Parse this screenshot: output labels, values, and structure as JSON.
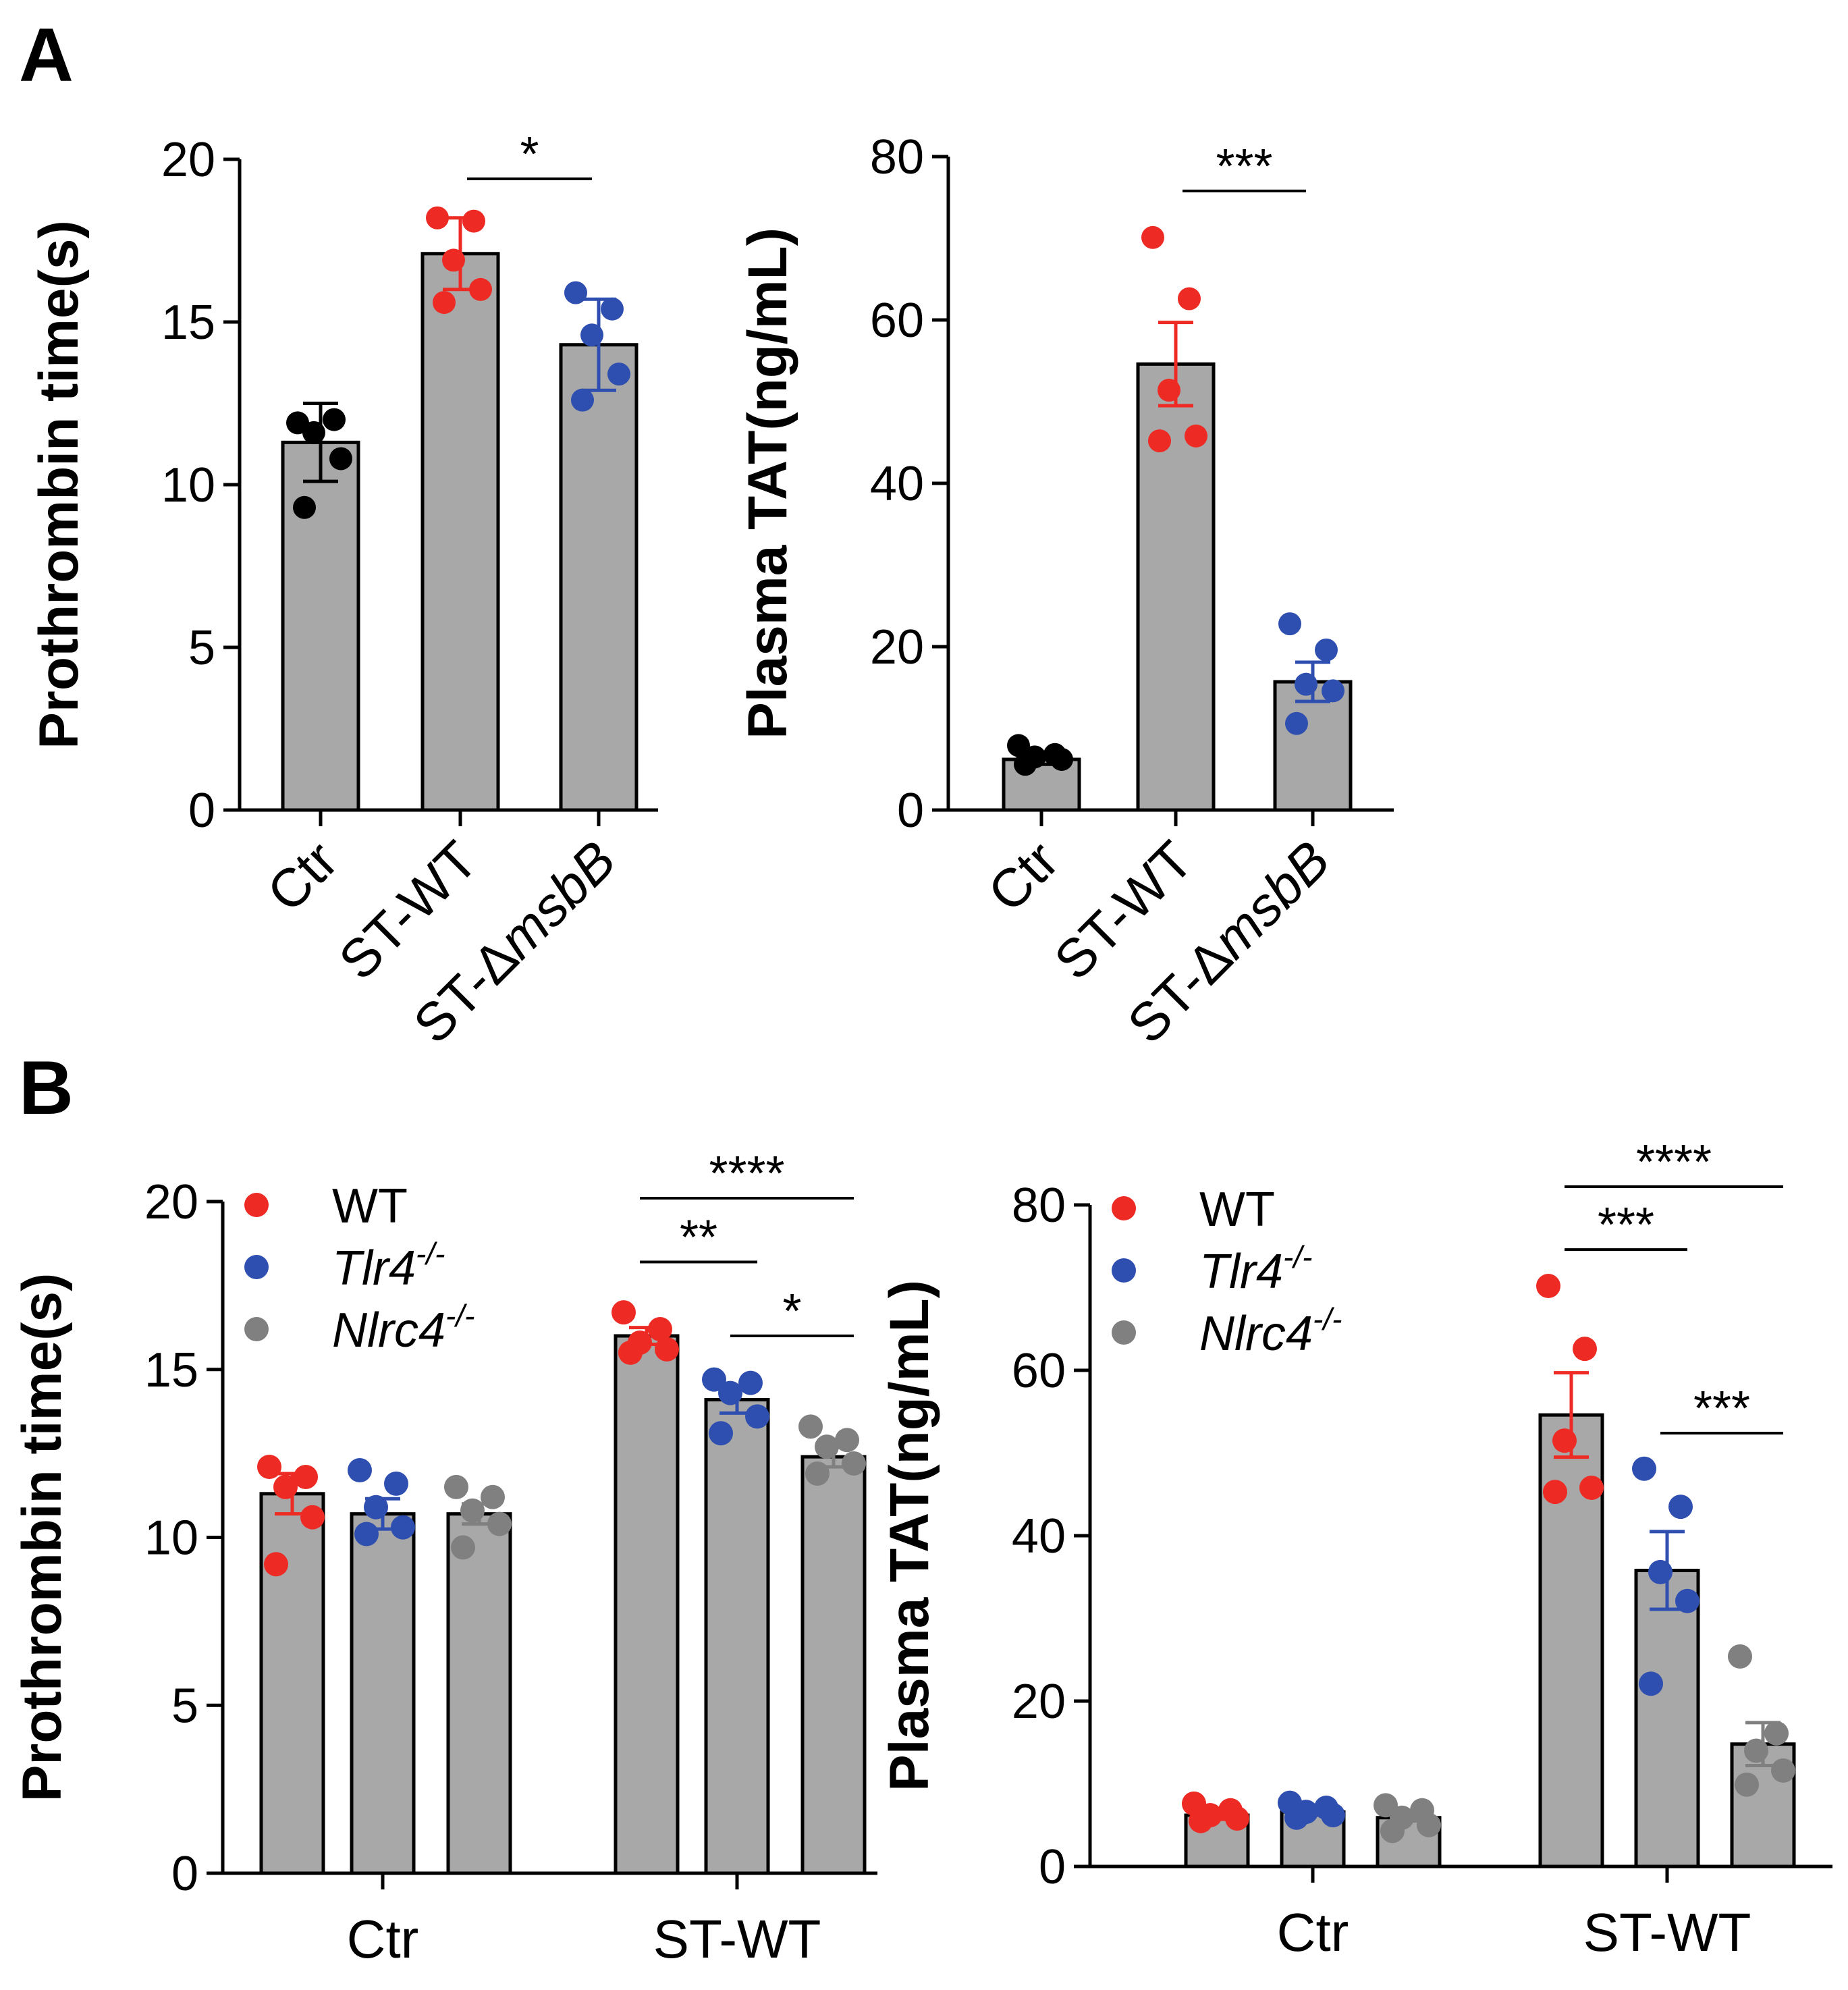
{
  "colors": {
    "WT": "#ee2a24",
    "Tlr4": "#2e4fb0",
    "Nlrc4": "#808080",
    "Ctr": "#000000",
    "bar": "#a8a8a8",
    "axis": "#000000"
  },
  "panel_labels": [
    "A",
    "B"
  ],
  "chart_data": [
    {
      "id": "A1",
      "type": "bar",
      "title": "",
      "ylabel": "Prothrombin time(s)",
      "ylim": [
        0,
        20
      ],
      "yticks": [
        0,
        5,
        10,
        15,
        20
      ],
      "categories": [
        "Ctr",
        "ST-WT",
        "ST-ΔmsbB"
      ],
      "category_label_parts": [
        [
          "Ctr"
        ],
        [
          "ST-WT"
        ],
        [
          "ST-Δ",
          "msbB"
        ]
      ],
      "values": [
        11.3,
        17.1,
        14.3
      ],
      "errors": [
        1.2,
        1.1,
        1.4
      ],
      "point_colors": [
        "Ctr",
        "WT",
        "Tlr4"
      ],
      "points": [
        [
          11.9,
          12.0,
          11.6,
          10.8,
          9.3
        ],
        [
          18.2,
          18.1,
          16.9,
          16.0,
          15.6
        ],
        [
          15.9,
          15.4,
          14.6,
          13.4,
          12.6
        ]
      ],
      "significance": [
        {
          "from": 1,
          "to": 2,
          "label": "*",
          "y": 19.4
        }
      ]
    },
    {
      "id": "A2",
      "type": "bar",
      "title": "",
      "ylabel": "Plasma TAT(ng/mL)",
      "ylim": [
        0,
        80
      ],
      "yticks": [
        0,
        20,
        40,
        60,
        80
      ],
      "categories": [
        "Ctr",
        "ST-WT",
        "ST-ΔmsbB"
      ],
      "category_label_parts": [
        [
          "Ctr"
        ],
        [
          "ST-WT"
        ],
        [
          "ST-Δ",
          "msbB"
        ]
      ],
      "values": [
        6.2,
        54.6,
        15.7
      ],
      "errors": [
        0.6,
        5.1,
        2.4
      ],
      "point_colors": [
        "Ctr",
        "WT",
        "Tlr4"
      ],
      "points": [
        [
          7.9,
          6.8,
          6.5,
          6.2,
          5.6
        ],
        [
          70.1,
          62.6,
          51.4,
          45.8,
          45.2
        ],
        [
          22.8,
          19.6,
          15.4,
          14.6,
          10.6
        ]
      ],
      "significance": [
        {
          "from": 1,
          "to": 2,
          "label": "***",
          "y": 75.8
        }
      ]
    },
    {
      "id": "B1",
      "type": "bar",
      "title": "",
      "ylabel": "Prothrombin time(s)",
      "ylim": [
        0,
        20
      ],
      "yticks": [
        0,
        5,
        10,
        15,
        20
      ],
      "categories": [
        "Ctr",
        "ST-WT"
      ],
      "series": [
        {
          "name": "WT",
          "legend_base": "WT",
          "legend_sup": "",
          "italic": false,
          "color_key": "WT",
          "values": [
            11.3,
            16.0
          ],
          "errors": [
            0.6,
            0.25
          ],
          "points": [
            [
              12.1,
              11.8,
              11.5,
              10.6,
              9.2
            ],
            [
              16.7,
              16.2,
              15.8,
              15.6,
              15.5
            ]
          ]
        },
        {
          "name": "Tlr4-/-",
          "legend_base": "Tlr4",
          "legend_sup": "-/-",
          "italic": true,
          "color_key": "Tlr4",
          "values": [
            10.7,
            14.1
          ],
          "errors": [
            0.45,
            0.4
          ],
          "points": [
            [
              12.0,
              11.6,
              10.9,
              10.3,
              10.1
            ],
            [
              14.7,
              14.6,
              14.3,
              13.6,
              13.1
            ]
          ]
        },
        {
          "name": "Nlrc4-/-",
          "legend_base": "Nlrc4",
          "legend_sup": "-/-",
          "italic": true,
          "color_key": "Nlrc4",
          "values": [
            10.7,
            12.4
          ],
          "errors": [
            0.3,
            0.3
          ],
          "points": [
            [
              11.5,
              11.2,
              10.8,
              10.4,
              9.7
            ],
            [
              13.3,
              12.9,
              12.7,
              12.2,
              11.9
            ]
          ]
        }
      ],
      "legend": [
        "WT",
        "Tlr4-/-",
        "Nlrc4-/-"
      ],
      "significance": [
        {
          "group": 1,
          "from": 0,
          "to": 2,
          "label": "****",
          "y": 20.1
        },
        {
          "group": 1,
          "from": 0,
          "to": 1,
          "label": "**",
          "y": 18.2
        },
        {
          "group": 1,
          "from": 1,
          "to": 2,
          "label": "*",
          "y": 16.0
        }
      ]
    },
    {
      "id": "B2",
      "type": "bar",
      "title": "",
      "ylabel": "Plasma TAT(ng/mL)",
      "ylim": [
        0,
        80
      ],
      "yticks": [
        0,
        20,
        40,
        60,
        80
      ],
      "categories": [
        "Ctr",
        "ST-WT"
      ],
      "series": [
        {
          "name": "WT",
          "legend_base": "WT",
          "legend_sup": "",
          "italic": false,
          "color_key": "WT",
          "values": [
            6.2,
            54.6
          ],
          "errors": [
            0.5,
            5.1
          ],
          "points": [
            [
              7.6,
              6.8,
              6.2,
              5.8,
              5.5
            ],
            [
              70.2,
              62.6,
              51.5,
              45.8,
              45.3
            ]
          ]
        },
        {
          "name": "Tlr4-/-",
          "legend_base": "Tlr4",
          "legend_sup": "-/-",
          "italic": true,
          "color_key": "Tlr4",
          "values": [
            6.6,
            35.8
          ],
          "errors": [
            0.4,
            4.7
          ],
          "points": [
            [
              7.7,
              7.1,
              6.6,
              6.2,
              5.9
            ],
            [
              48.1,
              43.5,
              35.6,
              32.1,
              22.1
            ]
          ]
        },
        {
          "name": "Nlrc4-/-",
          "legend_base": "Nlrc4",
          "legend_sup": "-/-",
          "italic": true,
          "color_key": "Nlrc4",
          "values": [
            5.9,
            14.8
          ],
          "errors": [
            0.4,
            2.6
          ],
          "points": [
            [
              7.4,
              6.8,
              5.9,
              5.0,
              4.3
            ],
            [
              25.4,
              16.1,
              14.0,
              11.6,
              9.9
            ]
          ]
        }
      ],
      "legend": [
        "WT",
        "Tlr4-/-",
        "Nlrc4-/-"
      ],
      "significance": [
        {
          "group": 1,
          "from": 0,
          "to": 2,
          "label": "****",
          "y": 82.2
        },
        {
          "group": 1,
          "from": 0,
          "to": 1,
          "label": "***",
          "y": 74.6
        },
        {
          "group": 1,
          "from": 1,
          "to": 2,
          "label": "***",
          "y": 52.4
        }
      ]
    }
  ]
}
